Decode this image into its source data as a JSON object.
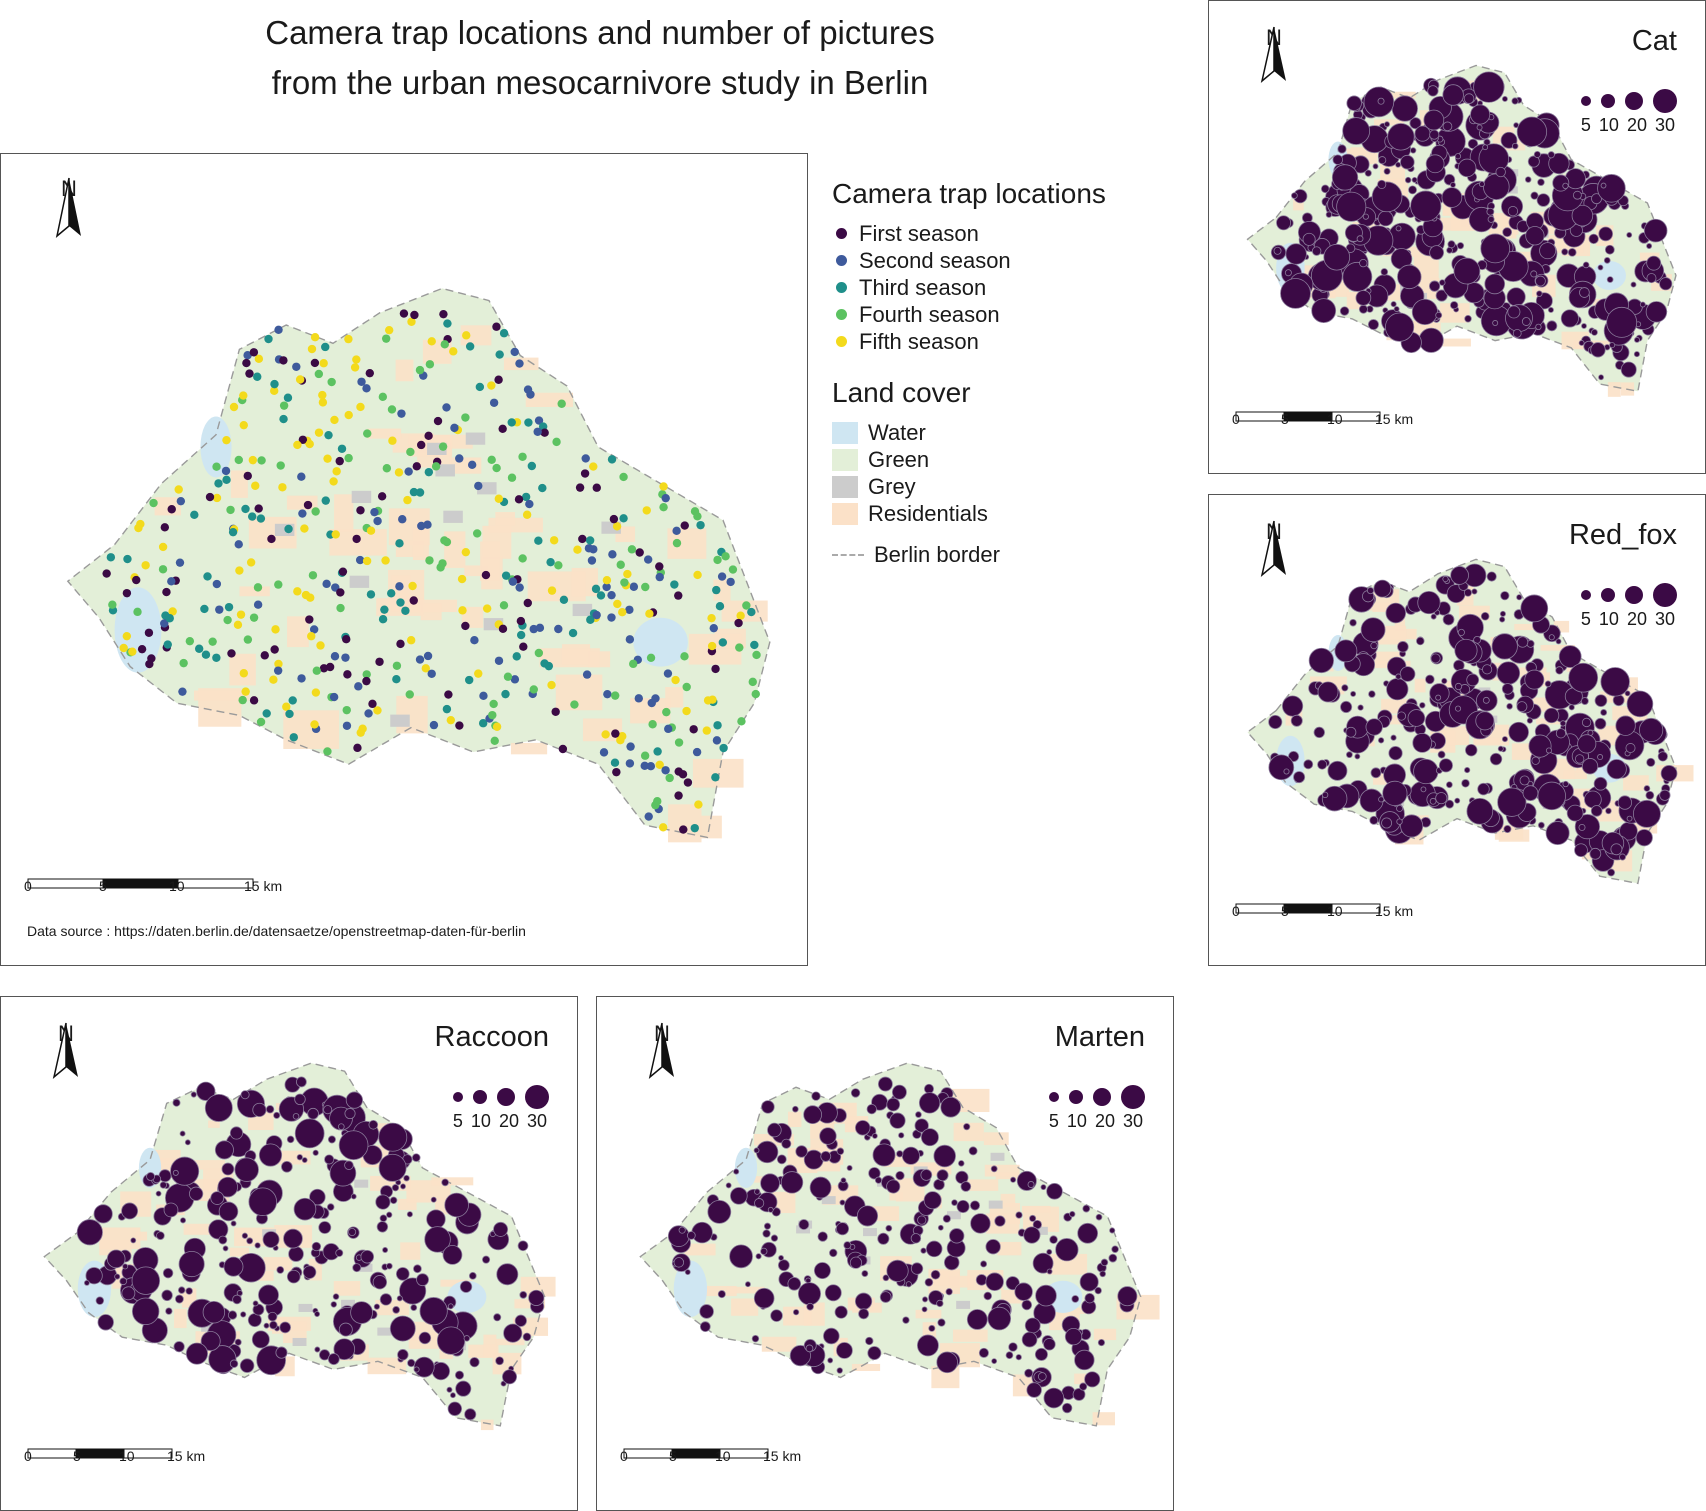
{
  "title": {
    "line1": "Camera trap locations and number of pictures",
    "line2": "from the urban mesocarnivore study in Berlin"
  },
  "legend": {
    "trap_heading": "Camera trap locations",
    "seasons": [
      {
        "label": "First season",
        "color": "#3b0a45"
      },
      {
        "label": "Second season",
        "color": "#3e5a9c"
      },
      {
        "label": "Third season",
        "color": "#1f8f8a"
      },
      {
        "label": "Fourth season",
        "color": "#5cc261"
      },
      {
        "label": "Fifth season",
        "color": "#f3da1c"
      }
    ],
    "landcover_heading": "Land cover",
    "landcover": [
      {
        "label": "Water",
        "color": "#cfe6f2"
      },
      {
        "label": "Green",
        "color": "#e3efd8"
      },
      {
        "label": "Grey",
        "color": "#cccccc"
      },
      {
        "label": "Residentials",
        "color": "#fbe1c8"
      }
    ],
    "border_label": "Berlin border"
  },
  "main_map": {
    "north_label": "N",
    "scale_ticks": [
      "0",
      "5",
      "10",
      "15 km"
    ],
    "source": "Data source : https://daten.berlin.de/datensaetze/openstreetmap-daten-für-berlin"
  },
  "species_maps": [
    {
      "name": "Cat",
      "sizes": [
        "5",
        "10",
        "20",
        "30"
      ],
      "north_label": "N",
      "scale_ticks": [
        "0",
        "5",
        "10",
        "15 km"
      ]
    },
    {
      "name": "Red_fox",
      "sizes": [
        "5",
        "10",
        "20",
        "30"
      ],
      "north_label": "N",
      "scale_ticks": [
        "0",
        "5",
        "10",
        "15 km"
      ]
    },
    {
      "name": "Raccoon",
      "sizes": [
        "5",
        "10",
        "20",
        "30"
      ],
      "north_label": "N",
      "scale_ticks": [
        "0",
        "5",
        "10",
        "15 km"
      ]
    },
    {
      "name": "Marten",
      "sizes": [
        "5",
        "10",
        "20",
        "30"
      ],
      "north_label": "N",
      "scale_ticks": [
        "0",
        "5",
        "10",
        "15 km"
      ]
    }
  ],
  "point_color": "#3b0a45"
}
